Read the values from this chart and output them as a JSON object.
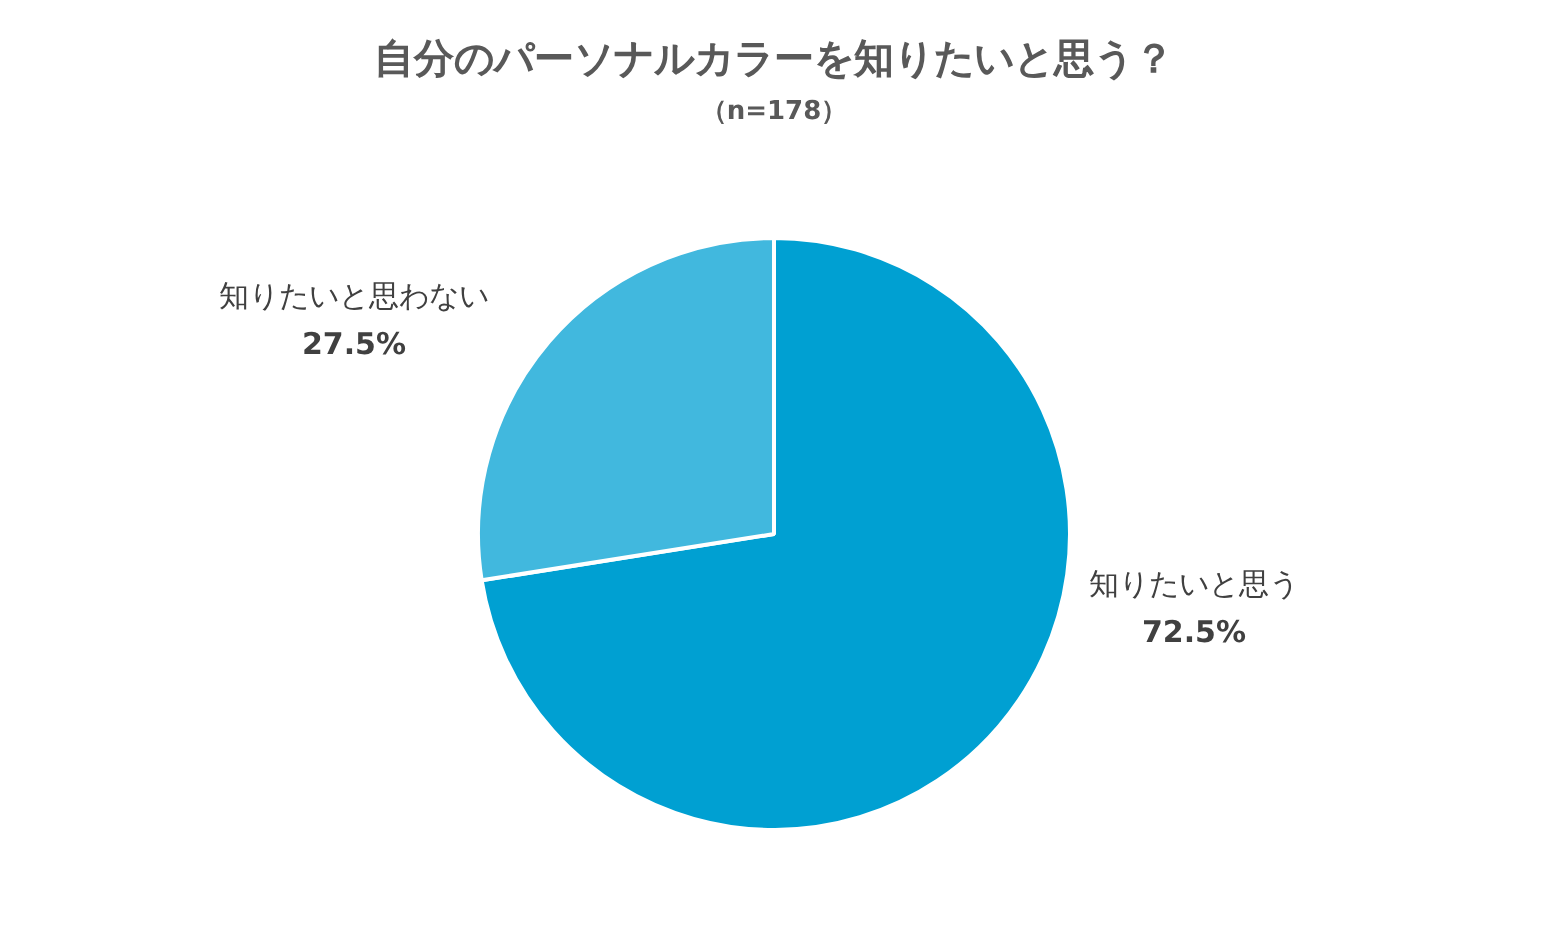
{
  "chart_data": {
    "type": "pie",
    "title": "自分のパーソナルカラーを知りたいと思う？",
    "subtitle": "（n=178）",
    "categories": [
      "知りたいと思う",
      "知りたいと思わない"
    ],
    "values": [
      72.5,
      27.5
    ],
    "colors": [
      "#00a0d2",
      "#41b8de"
    ],
    "value_labels": [
      "72.5%",
      "27.5%"
    ]
  }
}
